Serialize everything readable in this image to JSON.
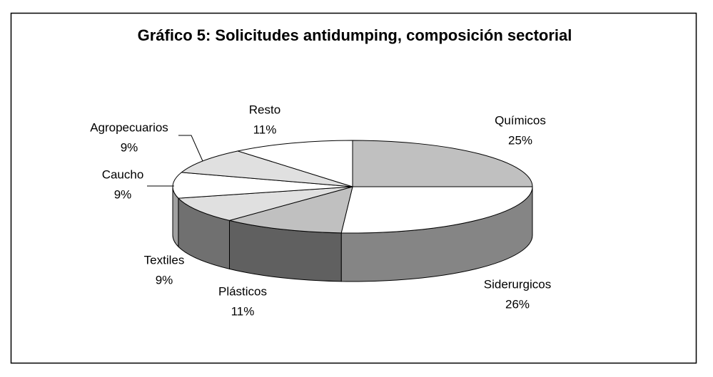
{
  "chart_data": {
    "type": "pie3d",
    "title": "Gráfico 5: Solicitudes antidumping, composición sectorial",
    "categories": [
      "Químicos",
      "Siderurgicos",
      "Plásticos",
      "Textiles",
      "Caucho",
      "Agropecuarios",
      "Resto"
    ],
    "values": [
      25,
      26,
      11,
      9,
      9,
      9,
      11
    ],
    "value_labels": [
      "25%",
      "26%",
      "11%",
      "9%",
      "9%",
      "9%",
      "11%"
    ],
    "colors": [
      "#c0c0c0",
      "#ffffff",
      "#c0c0c0",
      "#e0e0e0",
      "#ffffff",
      "#e0e0e0",
      "#ffffff"
    ],
    "side_colors": [
      "#909090",
      "#858585",
      "#606060",
      "#707070",
      "#a0a0a0",
      "#a0a0a0",
      "#a0a0a0"
    ]
  }
}
